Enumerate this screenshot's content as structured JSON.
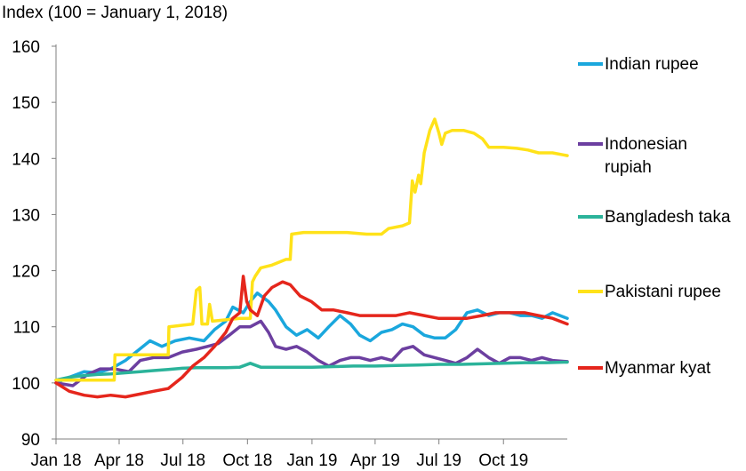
{
  "chart_data": {
    "type": "line",
    "title": "",
    "axis_note": "Index (100 = January 1, 2018)",
    "xlabel": "",
    "ylabel": "",
    "ylim": [
      90,
      160
    ],
    "yticks": [
      90,
      100,
      110,
      120,
      130,
      140,
      150,
      160
    ],
    "xlim": [
      "2018-01-01",
      "2019-12-31"
    ],
    "xticks": [
      {
        "date": "2018-01-01",
        "label": "Jan 18"
      },
      {
        "date": "2018-04-01",
        "label": "Apr 18"
      },
      {
        "date": "2018-07-01",
        "label": "Jul 18"
      },
      {
        "date": "2018-10-01",
        "label": "Oct 18"
      },
      {
        "date": "2019-01-01",
        "label": "Jan 19"
      },
      {
        "date": "2019-04-01",
        "label": "Apr 19"
      },
      {
        "date": "2019-07-01",
        "label": "Jul 19"
      },
      {
        "date": "2019-10-01",
        "label": "Oct 19"
      }
    ],
    "grid": false,
    "legend": "right",
    "series": [
      {
        "name": "Indian rupee",
        "legend_lines": [
          "Indian rupee"
        ],
        "color": "#1AA7DD",
        "points": [
          [
            "2018-01-01",
            100.0
          ],
          [
            "2018-01-20",
            101.0
          ],
          [
            "2018-02-10",
            102.0
          ],
          [
            "2018-03-01",
            101.8
          ],
          [
            "2018-03-20",
            102.5
          ],
          [
            "2018-04-10",
            104.0
          ],
          [
            "2018-04-30",
            106.0
          ],
          [
            "2018-05-15",
            107.5
          ],
          [
            "2018-06-01",
            106.5
          ],
          [
            "2018-06-20",
            107.5
          ],
          [
            "2018-07-10",
            108.0
          ],
          [
            "2018-07-31",
            107.5
          ],
          [
            "2018-08-15",
            109.5
          ],
          [
            "2018-08-31",
            111.0
          ],
          [
            "2018-09-10",
            113.5
          ],
          [
            "2018-09-25",
            112.5
          ],
          [
            "2018-10-05",
            114.5
          ],
          [
            "2018-10-15",
            116.0
          ],
          [
            "2018-10-31",
            114.5
          ],
          [
            "2018-11-10",
            113.0
          ],
          [
            "2018-11-25",
            110.0
          ],
          [
            "2018-12-10",
            108.5
          ],
          [
            "2018-12-25",
            109.5
          ],
          [
            "2019-01-10",
            108.0
          ],
          [
            "2019-01-25",
            110.0
          ],
          [
            "2019-02-10",
            112.0
          ],
          [
            "2019-02-25",
            110.5
          ],
          [
            "2019-03-10",
            108.5
          ],
          [
            "2019-03-25",
            107.5
          ],
          [
            "2019-04-10",
            109.0
          ],
          [
            "2019-04-25",
            109.5
          ],
          [
            "2019-05-10",
            110.5
          ],
          [
            "2019-05-25",
            110.0
          ],
          [
            "2019-06-10",
            108.5
          ],
          [
            "2019-06-25",
            108.0
          ],
          [
            "2019-07-10",
            108.0
          ],
          [
            "2019-07-25",
            109.5
          ],
          [
            "2019-08-10",
            112.5
          ],
          [
            "2019-08-25",
            113.0
          ],
          [
            "2019-09-10",
            112.0
          ],
          [
            "2019-09-25",
            112.5
          ],
          [
            "2019-10-10",
            112.5
          ],
          [
            "2019-10-25",
            112.0
          ],
          [
            "2019-11-10",
            112.0
          ],
          [
            "2019-11-25",
            111.5
          ],
          [
            "2019-12-10",
            112.5
          ],
          [
            "2019-12-31",
            111.5
          ]
        ]
      },
      {
        "name": "Indonesian rupiah",
        "legend_lines": [
          "Indonesian",
          "rupiah"
        ],
        "color": "#6C3FA0",
        "points": [
          [
            "2018-01-01",
            100.0
          ],
          [
            "2018-01-25",
            99.5
          ],
          [
            "2018-02-15",
            101.5
          ],
          [
            "2018-03-05",
            102.5
          ],
          [
            "2018-03-25",
            102.5
          ],
          [
            "2018-04-15",
            102.0
          ],
          [
            "2018-05-01",
            104.0
          ],
          [
            "2018-05-20",
            104.5
          ],
          [
            "2018-06-10",
            104.5
          ],
          [
            "2018-06-30",
            105.5
          ],
          [
            "2018-07-20",
            106.0
          ],
          [
            "2018-08-05",
            106.5
          ],
          [
            "2018-08-20",
            107.0
          ],
          [
            "2018-09-05",
            108.5
          ],
          [
            "2018-09-20",
            110.0
          ],
          [
            "2018-10-05",
            110.0
          ],
          [
            "2018-10-20",
            111.0
          ],
          [
            "2018-10-31",
            109.0
          ],
          [
            "2018-11-10",
            106.5
          ],
          [
            "2018-11-25",
            106.0
          ],
          [
            "2018-12-10",
            106.5
          ],
          [
            "2018-12-25",
            105.5
          ],
          [
            "2019-01-10",
            104.0
          ],
          [
            "2019-01-25",
            103.0
          ],
          [
            "2019-02-10",
            104.0
          ],
          [
            "2019-02-25",
            104.5
          ],
          [
            "2019-03-10",
            104.5
          ],
          [
            "2019-03-25",
            104.0
          ],
          [
            "2019-04-10",
            104.5
          ],
          [
            "2019-04-25",
            104.0
          ],
          [
            "2019-05-10",
            106.0
          ],
          [
            "2019-05-25",
            106.5
          ],
          [
            "2019-06-10",
            105.0
          ],
          [
            "2019-06-25",
            104.5
          ],
          [
            "2019-07-10",
            104.0
          ],
          [
            "2019-07-25",
            103.5
          ],
          [
            "2019-08-10",
            104.5
          ],
          [
            "2019-08-25",
            106.0
          ],
          [
            "2019-09-10",
            104.5
          ],
          [
            "2019-09-25",
            103.5
          ],
          [
            "2019-10-10",
            104.5
          ],
          [
            "2019-10-25",
            104.5
          ],
          [
            "2019-11-10",
            104.0
          ],
          [
            "2019-11-25",
            104.5
          ],
          [
            "2019-12-10",
            104.0
          ],
          [
            "2019-12-31",
            103.8
          ]
        ]
      },
      {
        "name": "Bangladesh taka",
        "legend_lines": [
          "Bangladesh taka"
        ],
        "color": "#2BB39A",
        "points": [
          [
            "2018-01-01",
            100.5
          ],
          [
            "2018-01-20",
            101.0
          ],
          [
            "2018-02-10",
            101.3
          ],
          [
            "2018-03-01",
            101.5
          ],
          [
            "2018-03-20",
            101.6
          ],
          [
            "2018-04-10",
            101.8
          ],
          [
            "2018-05-01",
            102.0
          ],
          [
            "2018-05-20",
            102.2
          ],
          [
            "2018-06-10",
            102.4
          ],
          [
            "2018-06-30",
            102.6
          ],
          [
            "2018-07-20",
            102.7
          ],
          [
            "2018-08-10",
            102.7
          ],
          [
            "2018-08-31",
            102.7
          ],
          [
            "2018-09-20",
            102.8
          ],
          [
            "2018-10-05",
            103.5
          ],
          [
            "2018-10-20",
            102.8
          ],
          [
            "2018-11-10",
            102.8
          ],
          [
            "2018-12-01",
            102.8
          ],
          [
            "2019-01-01",
            102.8
          ],
          [
            "2019-02-01",
            102.9
          ],
          [
            "2019-03-01",
            103.0
          ],
          [
            "2019-04-01",
            103.0
          ],
          [
            "2019-05-01",
            103.1
          ],
          [
            "2019-06-01",
            103.2
          ],
          [
            "2019-07-01",
            103.3
          ],
          [
            "2019-08-01",
            103.3
          ],
          [
            "2019-09-01",
            103.4
          ],
          [
            "2019-10-01",
            103.5
          ],
          [
            "2019-11-01",
            103.6
          ],
          [
            "2019-12-01",
            103.6
          ],
          [
            "2019-12-31",
            103.7
          ]
        ]
      },
      {
        "name": "Pakistani rupee",
        "legend_lines": [
          "Pakistani rupee"
        ],
        "color": "#FFE219",
        "points": [
          [
            "2018-01-01",
            100.5
          ],
          [
            "2018-02-10",
            100.5
          ],
          [
            "2018-03-10",
            100.5
          ],
          [
            "2018-03-25",
            100.5
          ],
          [
            "2018-03-26",
            105.0
          ],
          [
            "2018-05-15",
            105.0
          ],
          [
            "2018-06-10",
            105.0
          ],
          [
            "2018-06-11",
            110.0
          ],
          [
            "2018-07-15",
            110.5
          ],
          [
            "2018-07-20",
            116.5
          ],
          [
            "2018-07-25",
            117.0
          ],
          [
            "2018-07-28",
            110.5
          ],
          [
            "2018-08-05",
            110.5
          ],
          [
            "2018-08-08",
            114.0
          ],
          [
            "2018-08-12",
            111.0
          ],
          [
            "2018-09-20",
            111.5
          ],
          [
            "2018-10-05",
            111.5
          ],
          [
            "2018-10-08",
            118.0
          ],
          [
            "2018-10-12",
            119.0
          ],
          [
            "2018-10-20",
            120.5
          ],
          [
            "2018-11-05",
            121.0
          ],
          [
            "2018-11-25",
            122.0
          ],
          [
            "2018-12-01",
            122.0
          ],
          [
            "2018-12-03",
            126.5
          ],
          [
            "2018-12-20",
            126.8
          ],
          [
            "2019-01-20",
            126.8
          ],
          [
            "2019-02-20",
            126.8
          ],
          [
            "2019-03-20",
            126.5
          ],
          [
            "2019-04-10",
            126.5
          ],
          [
            "2019-04-20",
            127.5
          ],
          [
            "2019-05-10",
            128.0
          ],
          [
            "2019-05-20",
            128.5
          ],
          [
            "2019-05-24",
            136.0
          ],
          [
            "2019-05-28",
            134.0
          ],
          [
            "2019-06-02",
            137.0
          ],
          [
            "2019-06-05",
            135.5
          ],
          [
            "2019-06-10",
            141.0
          ],
          [
            "2019-06-18",
            145.0
          ],
          [
            "2019-06-25",
            147.0
          ],
          [
            "2019-07-01",
            144.5
          ],
          [
            "2019-07-05",
            142.5
          ],
          [
            "2019-07-10",
            144.5
          ],
          [
            "2019-07-20",
            145.0
          ],
          [
            "2019-08-05",
            145.0
          ],
          [
            "2019-08-20",
            144.5
          ],
          [
            "2019-09-01",
            143.5
          ],
          [
            "2019-09-10",
            142.0
          ],
          [
            "2019-10-01",
            142.0
          ],
          [
            "2019-10-20",
            141.8
          ],
          [
            "2019-11-05",
            141.5
          ],
          [
            "2019-11-20",
            141.0
          ],
          [
            "2019-12-10",
            141.0
          ],
          [
            "2019-12-31",
            140.5
          ]
        ]
      },
      {
        "name": "Myanmar kyat",
        "legend_lines": [
          "Myanmar kyat"
        ],
        "color": "#E5261C",
        "points": [
          [
            "2018-01-01",
            100.0
          ],
          [
            "2018-01-20",
            98.5
          ],
          [
            "2018-02-10",
            97.8
          ],
          [
            "2018-03-01",
            97.5
          ],
          [
            "2018-03-20",
            97.8
          ],
          [
            "2018-04-10",
            97.5
          ],
          [
            "2018-04-30",
            98.0
          ],
          [
            "2018-05-20",
            98.5
          ],
          [
            "2018-06-10",
            99.0
          ],
          [
            "2018-06-30",
            101.0
          ],
          [
            "2018-07-15",
            103.0
          ],
          [
            "2018-07-31",
            104.5
          ],
          [
            "2018-08-15",
            106.5
          ],
          [
            "2018-08-31",
            109.0
          ],
          [
            "2018-09-10",
            111.5
          ],
          [
            "2018-09-20",
            112.5
          ],
          [
            "2018-09-25",
            119.0
          ],
          [
            "2018-09-30",
            114.5
          ],
          [
            "2018-10-05",
            113.0
          ],
          [
            "2018-10-15",
            112.0
          ],
          [
            "2018-10-25",
            115.5
          ],
          [
            "2018-11-05",
            117.0
          ],
          [
            "2018-11-20",
            118.0
          ],
          [
            "2018-12-01",
            117.5
          ],
          [
            "2018-12-15",
            115.5
          ],
          [
            "2018-12-31",
            114.5
          ],
          [
            "2019-01-15",
            113.0
          ],
          [
            "2019-02-01",
            113.0
          ],
          [
            "2019-02-20",
            112.5
          ],
          [
            "2019-03-10",
            112.0
          ],
          [
            "2019-03-25",
            112.0
          ],
          [
            "2019-04-10",
            112.0
          ],
          [
            "2019-05-01",
            112.0
          ],
          [
            "2019-05-20",
            112.5
          ],
          [
            "2019-06-10",
            112.0
          ],
          [
            "2019-06-30",
            111.5
          ],
          [
            "2019-07-20",
            111.5
          ],
          [
            "2019-08-10",
            111.5
          ],
          [
            "2019-08-31",
            112.0
          ],
          [
            "2019-09-20",
            112.5
          ],
          [
            "2019-10-10",
            112.5
          ],
          [
            "2019-10-31",
            112.5
          ],
          [
            "2019-11-20",
            112.0
          ],
          [
            "2019-12-10",
            111.5
          ],
          [
            "2019-12-31",
            110.5
          ]
        ]
      }
    ]
  }
}
